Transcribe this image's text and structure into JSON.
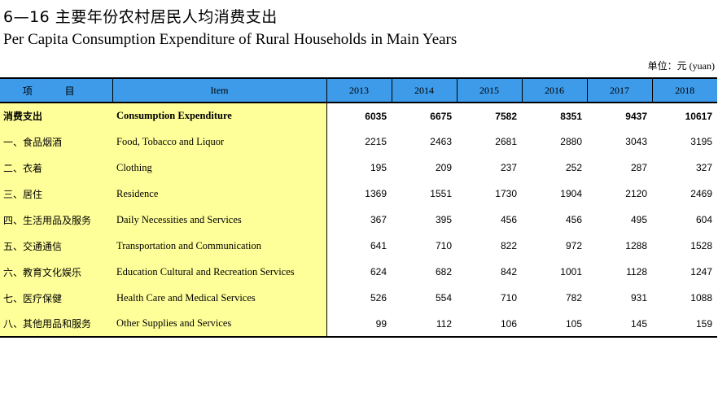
{
  "title_cn": "6—16  主要年份农村居民人均消费支出",
  "title_en": "Per Capita Consumption Expenditure of Rural Households in Main Years",
  "unit": "单位：元 (yuan)",
  "header": {
    "col_cn": "项 目",
    "col_en": "Item",
    "years": [
      "2013",
      "2014",
      "2015",
      "2016",
      "2017",
      "2018"
    ]
  },
  "rows": [
    {
      "cn": "消费支出",
      "en": "Consumption Expenditure",
      "values": [
        "6035",
        "6675",
        "7582",
        "8351",
        "9437",
        "10617"
      ]
    },
    {
      "cn": "一、食品烟酒",
      "en": "Food, Tobacco and Liquor",
      "values": [
        "2215",
        "2463",
        "2681",
        "2880",
        "3043",
        "3195"
      ]
    },
    {
      "cn": "二、衣着",
      "en": "Clothing",
      "values": [
        "195",
        "209",
        "237",
        "252",
        "287",
        "327"
      ]
    },
    {
      "cn": "三、居住",
      "en": "Residence",
      "values": [
        "1369",
        "1551",
        "1730",
        "1904",
        "2120",
        "2469"
      ]
    },
    {
      "cn": "四、生活用品及服务",
      "en": "Daily Necessities and Services",
      "values": [
        "367",
        "395",
        "456",
        "456",
        "495",
        "604"
      ]
    },
    {
      "cn": "五、交通通信",
      "en": "Transportation and Communication",
      "values": [
        "641",
        "710",
        "822",
        "972",
        "1288",
        "1528"
      ]
    },
    {
      "cn": "六、教育文化娱乐",
      "en": "Education Cultural and Recreation Services",
      "values": [
        "624",
        "682",
        "842",
        "1001",
        "1128",
        "1247"
      ]
    },
    {
      "cn": "七、医疗保健",
      "en": "Health Care and Medical Services",
      "values": [
        "526",
        "554",
        "710",
        "782",
        "931",
        "1088"
      ]
    },
    {
      "cn": "八、其他用品和服务",
      "en": "Other Supplies and Services",
      "values": [
        "99",
        "112",
        "106",
        "105",
        "145",
        "159"
      ]
    }
  ],
  "colors": {
    "header_bg": "#3d9be9",
    "label_bg": "#ffff99"
  }
}
